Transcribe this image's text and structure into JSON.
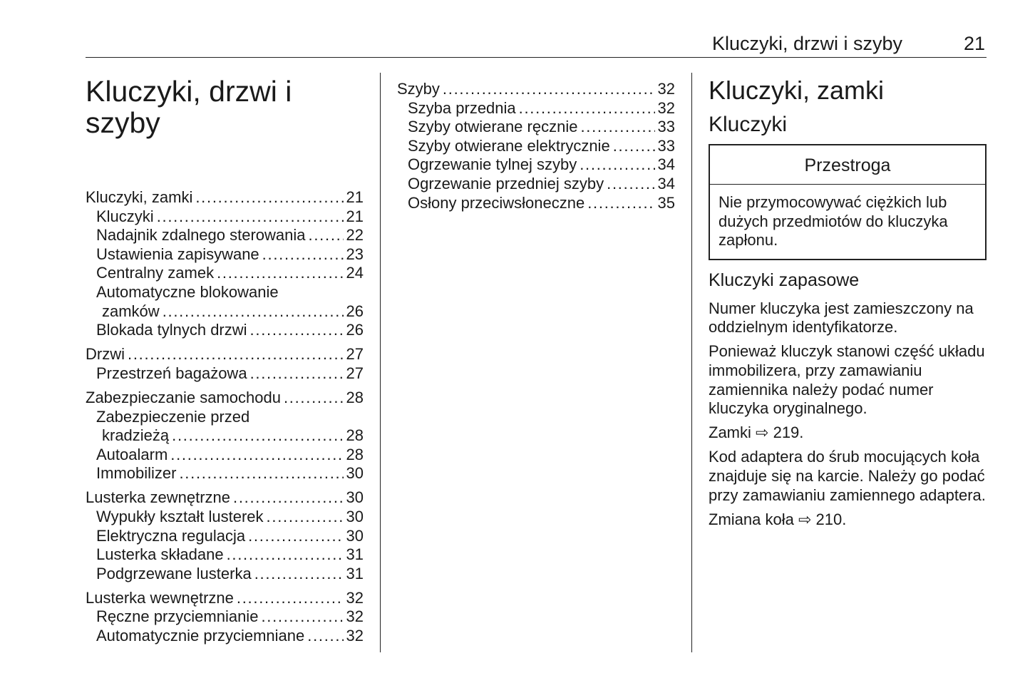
{
  "header": {
    "title": "Kluczyki, drzwi i szyby",
    "page": "21"
  },
  "chapter_title_lines": [
    "Kluczyki, drzwi i",
    "szyby"
  ],
  "toc_col1": [
    {
      "title": "Kluczyki, zamki",
      "page": "21",
      "items": [
        {
          "lines": [
            "Kluczyki"
          ],
          "page": "21"
        },
        {
          "lines": [
            "Nadajnik zdalnego sterowania"
          ],
          "page": "22"
        },
        {
          "lines": [
            "Ustawienia zapisywane"
          ],
          "page": "23"
        },
        {
          "lines": [
            "Centralny zamek"
          ],
          "page": "24"
        },
        {
          "lines": [
            "Automatyczne blokowanie",
            "zamków"
          ],
          "page": "26"
        },
        {
          "lines": [
            "Blokada tylnych drzwi"
          ],
          "page": "26"
        }
      ]
    },
    {
      "title": "Drzwi",
      "page": "27",
      "items": [
        {
          "lines": [
            "Przestrzeń bagażowa"
          ],
          "page": "27"
        }
      ]
    },
    {
      "title": "Zabezpieczanie samochodu",
      "page": "28",
      "items": [
        {
          "lines": [
            "Zabezpieczenie przed",
            "kradzieżą"
          ],
          "page": "28"
        },
        {
          "lines": [
            "Autoalarm"
          ],
          "page": "28"
        },
        {
          "lines": [
            "Immobilizer"
          ],
          "page": "30"
        }
      ]
    },
    {
      "title": "Lusterka zewnętrzne",
      "page": "30",
      "items": [
        {
          "lines": [
            "Wypukły kształt lusterek"
          ],
          "page": "30"
        },
        {
          "lines": [
            "Elektryczna regulacja"
          ],
          "page": "30"
        },
        {
          "lines": [
            "Lusterka składane"
          ],
          "page": "31"
        },
        {
          "lines": [
            "Podgrzewane lusterka"
          ],
          "page": "31"
        }
      ]
    },
    {
      "title": "Lusterka wewnętrzne",
      "page": "32",
      "items": [
        {
          "lines": [
            "Ręczne przyciemnianie"
          ],
          "page": "32"
        },
        {
          "lines": [
            "Automatycznie przyciemniane"
          ],
          "page": "32"
        }
      ]
    }
  ],
  "toc_col2": [
    {
      "title": "Szyby",
      "page": "32",
      "items": [
        {
          "lines": [
            "Szyba przednia"
          ],
          "page": "32"
        },
        {
          "lines": [
            "Szyby otwierane ręcznie"
          ],
          "page": "33"
        },
        {
          "lines": [
            "Szyby otwierane elektrycznie"
          ],
          "page": "33"
        },
        {
          "lines": [
            "Ogrzewanie tylnej szyby"
          ],
          "page": "34"
        },
        {
          "lines": [
            "Ogrzewanie przedniej szyby"
          ],
          "page": "34"
        },
        {
          "lines": [
            "Osłony przeciwsłoneczne"
          ],
          "page": "35"
        }
      ]
    }
  ],
  "section": {
    "h1": "Kluczyki, zamki",
    "h2": "Kluczyki",
    "warning": {
      "title": "Przestroga",
      "text": "Nie przymocowywać ciężkich lub dużych przedmiotów do kluczyka zapłonu."
    },
    "h3": "Kluczyki zapasowe",
    "p1": "Numer kluczyka jest zamieszczony na oddzielnym identyfikatorze.",
    "p2": "Ponieważ kluczyk stanowi część układu immobilizera, przy zamawianiu zamiennika należy podać numer kluczyka oryginalnego.",
    "ref1": {
      "text": "Zamki",
      "page": "219."
    },
    "p3": "Kod adaptera do śrub mocujących koła znajduje się na karcie. Należy go podać przy zamawianiu zamiennego adaptera.",
    "ref2": {
      "text": "Zmiana koła",
      "page": "210."
    },
    "ref_icon": "arrow-right-outline-icon"
  }
}
